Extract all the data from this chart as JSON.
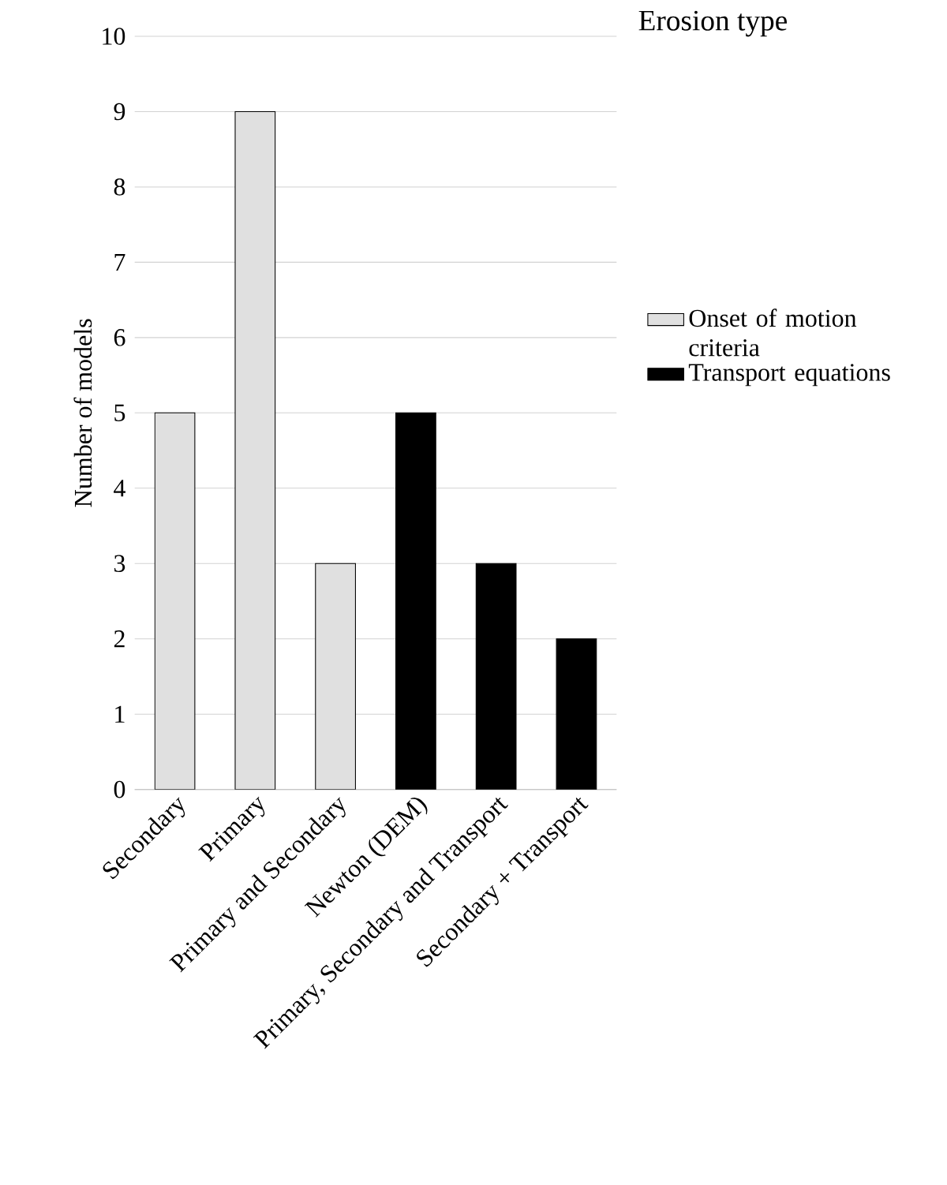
{
  "chart_data": {
    "type": "bar",
    "title": "Erosion type",
    "ylabel": "Number of models",
    "categories": [
      "Secondary",
      "Primary",
      "Primary and Secondary",
      "Newton (DEM)",
      "Primary, Secondary and Transport",
      "Secondary + Transport"
    ],
    "series": [
      {
        "name": "Onset of motion criteria",
        "color": "#e0e0e0",
        "values": [
          5,
          9,
          3,
          null,
          null,
          null
        ]
      },
      {
        "name": "Transport equations",
        "color": "#000000",
        "values": [
          null,
          null,
          null,
          5,
          3,
          2
        ]
      }
    ],
    "ylim": [
      0,
      10
    ],
    "yticks": [
      0,
      1,
      2,
      3,
      4,
      5,
      6,
      7,
      8,
      9,
      10
    ],
    "grid": "y",
    "legend": "right"
  }
}
